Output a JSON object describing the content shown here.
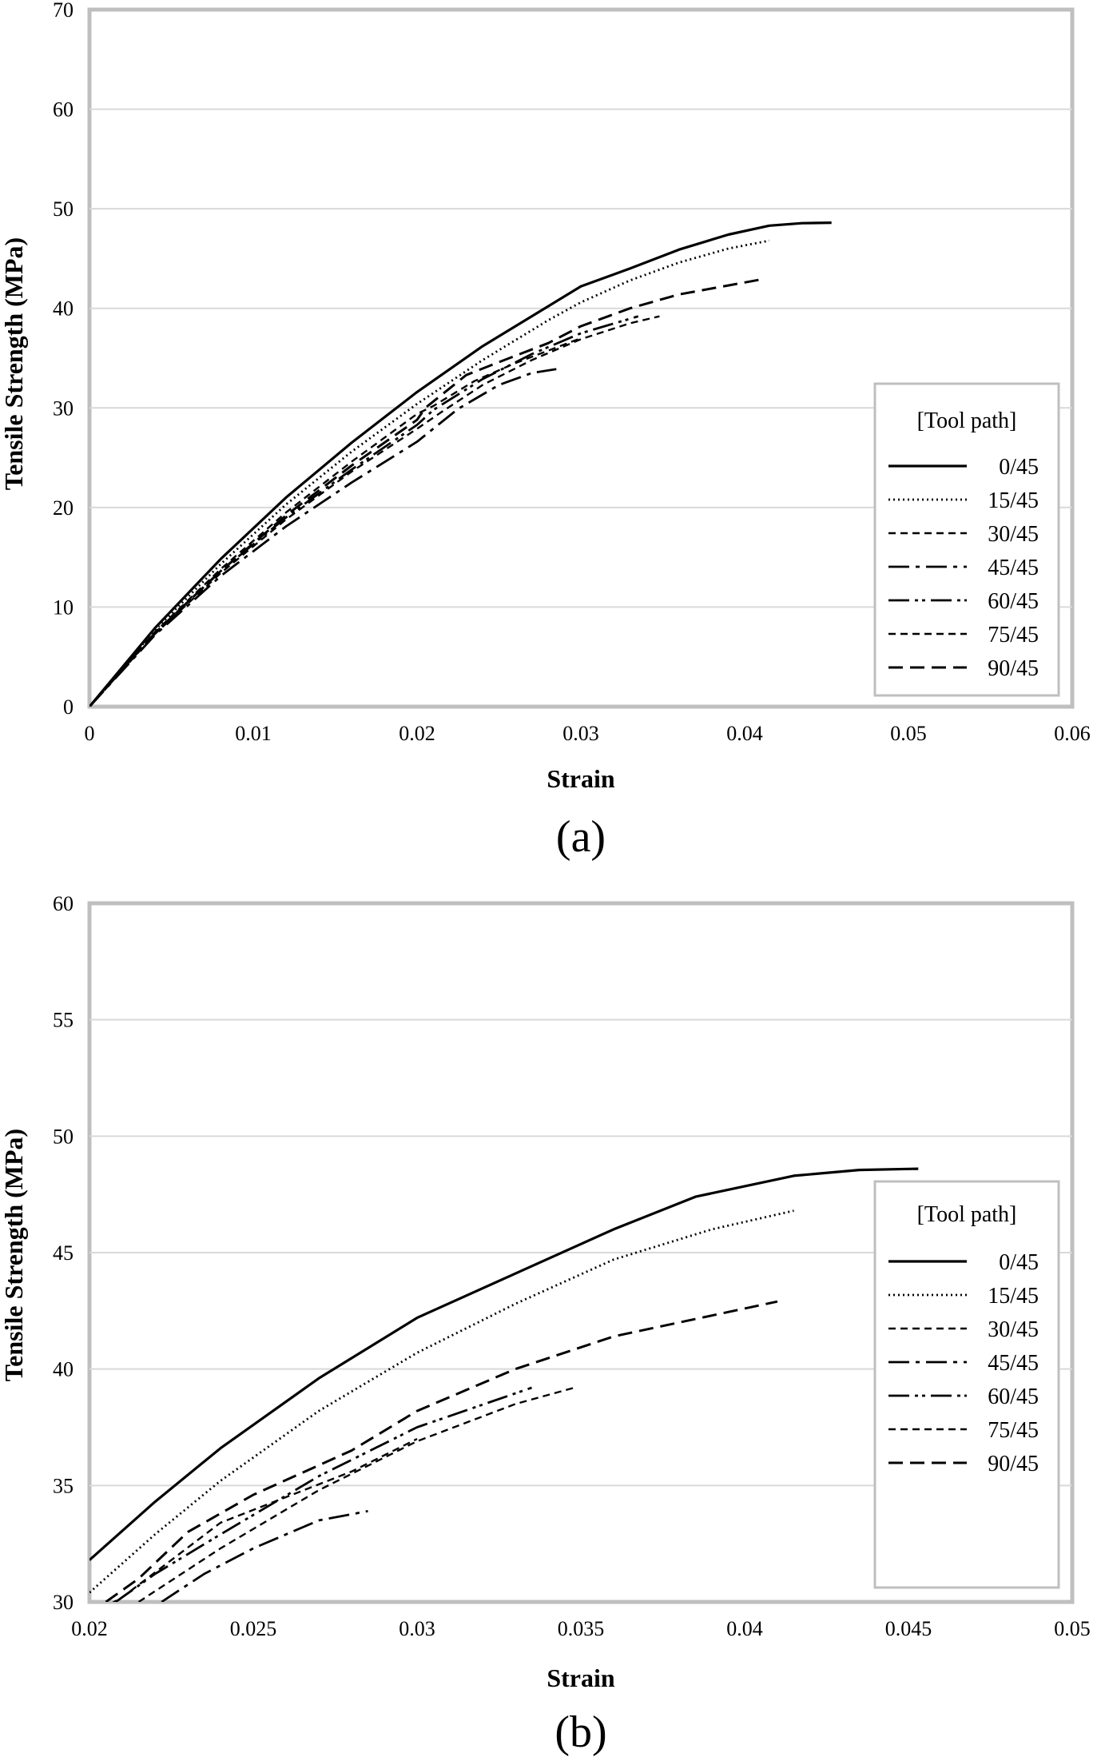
{
  "chart_data": [
    {
      "type": "line",
      "panel_label": "(a)",
      "xlabel": "Strain",
      "ylabel": "Tensile Strength (MPa)",
      "xlim": [
        0,
        0.06
      ],
      "ylim": [
        0,
        70
      ],
      "xticks": [
        "0",
        "0.01",
        "0.02",
        "0.03",
        "0.04",
        "0.05",
        "0.06"
      ],
      "xtick_values": [
        0,
        0.01,
        0.02,
        0.03,
        0.04,
        0.05,
        0.06
      ],
      "yticks": [
        "0",
        "10",
        "20",
        "30",
        "40",
        "50",
        "60",
        "70"
      ],
      "ytick_values": [
        0,
        10,
        20,
        30,
        40,
        50,
        60,
        70
      ],
      "grid": "horizontal",
      "legend": {
        "title": "[Tool path]",
        "position": "right",
        "entries": [
          "0/45",
          "15/45",
          "30/45",
          "45/45",
          "60/45",
          "75/45",
          "90/45"
        ]
      },
      "series": [
        {
          "name": "0/45",
          "x": [
            0,
            0.004,
            0.008,
            0.012,
            0.016,
            0.02,
            0.024,
            0.028,
            0.03,
            0.033,
            0.036,
            0.039,
            0.0415,
            0.0435,
            0.0453
          ],
          "y": [
            0,
            7.9,
            14.8,
            21.0,
            26.5,
            31.6,
            36.2,
            40.2,
            42.2,
            44.0,
            45.9,
            47.4,
            48.3,
            48.55,
            48.6
          ]
        },
        {
          "name": "15/45",
          "x": [
            0,
            0.004,
            0.008,
            0.012,
            0.016,
            0.02,
            0.024,
            0.028,
            0.03,
            0.033,
            0.036,
            0.039,
            0.0415
          ],
          "y": [
            0,
            7.7,
            14.3,
            20.3,
            25.6,
            30.4,
            34.8,
            38.8,
            40.6,
            42.8,
            44.6,
            46.0,
            46.8
          ]
        },
        {
          "name": "30/45",
          "x": [
            0,
            0.004,
            0.008,
            0.012,
            0.016,
            0.02,
            0.0215,
            0.024,
            0.027,
            0.03,
            0.033,
            0.0348
          ],
          "y": [
            0,
            7.3,
            13.4,
            18.8,
            23.6,
            27.9,
            29.6,
            32.3,
            34.8,
            36.9,
            38.5,
            39.2
          ]
        },
        {
          "name": "45/45",
          "x": [
            0,
            0.004,
            0.008,
            0.012,
            0.016,
            0.02,
            0.0225,
            0.025,
            0.027,
            0.0285
          ],
          "y": [
            0,
            7.2,
            13.1,
            18.1,
            22.5,
            26.6,
            29.9,
            32.3,
            33.5,
            33.9
          ]
        },
        {
          "name": "60/45",
          "x": [
            0,
            0.004,
            0.008,
            0.012,
            0.016,
            0.02,
            0.021,
            0.024,
            0.027,
            0.03,
            0.0335
          ],
          "y": [
            0,
            7.4,
            13.6,
            19.0,
            23.8,
            28.3,
            29.8,
            32.9,
            35.4,
            37.5,
            39.2
          ]
        },
        {
          "name": "75/45",
          "x": [
            0,
            0.004,
            0.008,
            0.012,
            0.016,
            0.02,
            0.021,
            0.0235,
            0.026,
            0.03
          ],
          "y": [
            0,
            7.5,
            13.8,
            19.5,
            24.6,
            29.4,
            30.2,
            32.7,
            34.5,
            37.0
          ]
        },
        {
          "name": "90/45",
          "x": [
            0,
            0.004,
            0.008,
            0.012,
            0.016,
            0.02,
            0.0205,
            0.023,
            0.025,
            0.028,
            0.03,
            0.033,
            0.036,
            0.039,
            0.041
          ],
          "y": [
            0,
            7.4,
            13.6,
            19.2,
            24.2,
            28.8,
            30.0,
            33.3,
            34.6,
            36.5,
            38.2,
            40.0,
            41.4,
            42.3,
            42.9
          ]
        }
      ]
    },
    {
      "type": "line",
      "panel_label": "(b)",
      "xlabel": "Strain",
      "ylabel": "Tensile Strength (MPa)",
      "xlim": [
        0.02,
        0.05
      ],
      "ylim": [
        30,
        60
      ],
      "xticks": [
        "0.02",
        "0.025",
        "0.03",
        "0.035",
        "0.04",
        "0.045",
        "0.05"
      ],
      "xtick_values": [
        0.02,
        0.025,
        0.03,
        0.035,
        0.04,
        0.045,
        0.05
      ],
      "yticks": [
        "30",
        "35",
        "40",
        "45",
        "50",
        "55",
        "60"
      ],
      "ytick_values": [
        30,
        35,
        40,
        45,
        50,
        55,
        60
      ],
      "grid": "horizontal",
      "legend": {
        "title": "[Tool path]",
        "position": "right",
        "entries": [
          "0/45",
          "15/45",
          "30/45",
          "45/45",
          "60/45",
          "75/45",
          "90/45"
        ]
      },
      "series": [
        {
          "name": "0/45",
          "x": [
            0.02,
            0.022,
            0.024,
            0.027,
            0.03,
            0.033,
            0.036,
            0.0385,
            0.0415,
            0.0435,
            0.0453
          ],
          "y": [
            31.8,
            34.3,
            36.6,
            39.6,
            42.2,
            44.1,
            46.0,
            47.4,
            48.3,
            48.55,
            48.6
          ]
        },
        {
          "name": "15/45",
          "x": [
            0.02,
            0.022,
            0.024,
            0.027,
            0.03,
            0.033,
            0.036,
            0.039,
            0.0415
          ],
          "y": [
            30.4,
            32.9,
            35.2,
            38.2,
            40.7,
            42.8,
            44.7,
            46.0,
            46.8
          ]
        },
        {
          "name": "30/45",
          "x": [
            0.0215,
            0.024,
            0.027,
            0.03,
            0.033,
            0.0348
          ],
          "y": [
            30.0,
            32.3,
            34.8,
            36.9,
            38.5,
            39.2
          ]
        },
        {
          "name": "45/45",
          "x": [
            0.0222,
            0.0235,
            0.025,
            0.027,
            0.0285
          ],
          "y": [
            30.0,
            31.2,
            32.3,
            33.5,
            33.9
          ]
        },
        {
          "name": "60/45",
          "x": [
            0.0208,
            0.022,
            0.024,
            0.027,
            0.03,
            0.0335
          ],
          "y": [
            30.0,
            31.2,
            32.9,
            35.4,
            37.5,
            39.2
          ]
        },
        {
          "name": "75/45",
          "x": [
            0.02,
            0.021,
            0.0225,
            0.024,
            0.026,
            0.028,
            0.03
          ],
          "y": [
            29.4,
            30.2,
            31.8,
            33.4,
            34.5,
            35.6,
            37.0
          ]
        },
        {
          "name": "90/45",
          "x": [
            0.0205,
            0.0215,
            0.023,
            0.025,
            0.028,
            0.03,
            0.033,
            0.036,
            0.039,
            0.041
          ],
          "y": [
            30.0,
            31.0,
            33.0,
            34.6,
            36.5,
            38.2,
            40.0,
            41.4,
            42.3,
            42.9
          ]
        }
      ]
    }
  ],
  "styles": {
    "line_color": "#000000",
    "grid_color": "#d9d9d9",
    "frame_color": "#bfbfbf",
    "dash": {
      "0/45": "",
      "15/45": "2 4",
      "30/45": "9 6",
      "45/45": "26 8 5 8",
      "60/45": "26 7 4 5 4 7",
      "75/45": "9 6",
      "90/45": "18 9"
    },
    "width": {
      "0/45": 3.2,
      "15/45": 2.8,
      "30/45": 2.4,
      "45/45": 2.8,
      "60/45": 2.8,
      "75/45": 2.4,
      "90/45": 3.0
    }
  }
}
